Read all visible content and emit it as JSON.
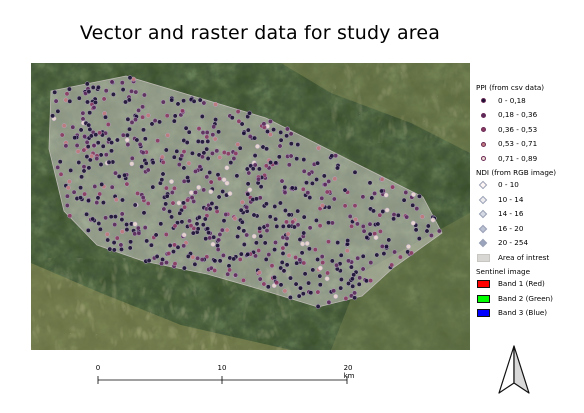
{
  "title": "Vector and raster data for study area",
  "legend": {
    "ppi": {
      "heading": "PPI (from csv data)",
      "classes": [
        {
          "label": "0 - 0,18",
          "color": "#1a1033"
        },
        {
          "label": "0,18 - 0,36",
          "color": "#5a2a5c"
        },
        {
          "label": "0,36 - 0,53",
          "color": "#8a3a62"
        },
        {
          "label": "0,53 - 0,71",
          "color": "#c07a7e"
        },
        {
          "label": "0,71 - 0,89",
          "color": "#f0dcd6"
        }
      ]
    },
    "ndi": {
      "heading": "NDI (from RGB image)",
      "classes": [
        {
          "label": "0 - 10",
          "color": "#fdf6f4"
        },
        {
          "label": "10 - 14",
          "color": "#ecebee"
        },
        {
          "label": "14 - 16",
          "color": "#d4d9e3"
        },
        {
          "label": "16 - 20",
          "color": "#b9c1d2"
        },
        {
          "label": "20 - 254",
          "color": "#9aa4bd"
        }
      ]
    },
    "area": {
      "label": "Area of intrest",
      "color": "#d9d7d3"
    },
    "sentinel": {
      "heading": "Sentinel image",
      "bands": [
        {
          "label": "Band 1 (Red)",
          "color": "#ff0000"
        },
        {
          "label": "Band 2 (Green)",
          "color": "#00ff00"
        },
        {
          "label": "Band 3 (Blue)",
          "color": "#0000ff"
        }
      ]
    }
  },
  "scalebar": {
    "labels": [
      "0",
      "10",
      "20 km"
    ]
  },
  "north_arrow": {
    "icon": "north-arrow-icon"
  }
}
